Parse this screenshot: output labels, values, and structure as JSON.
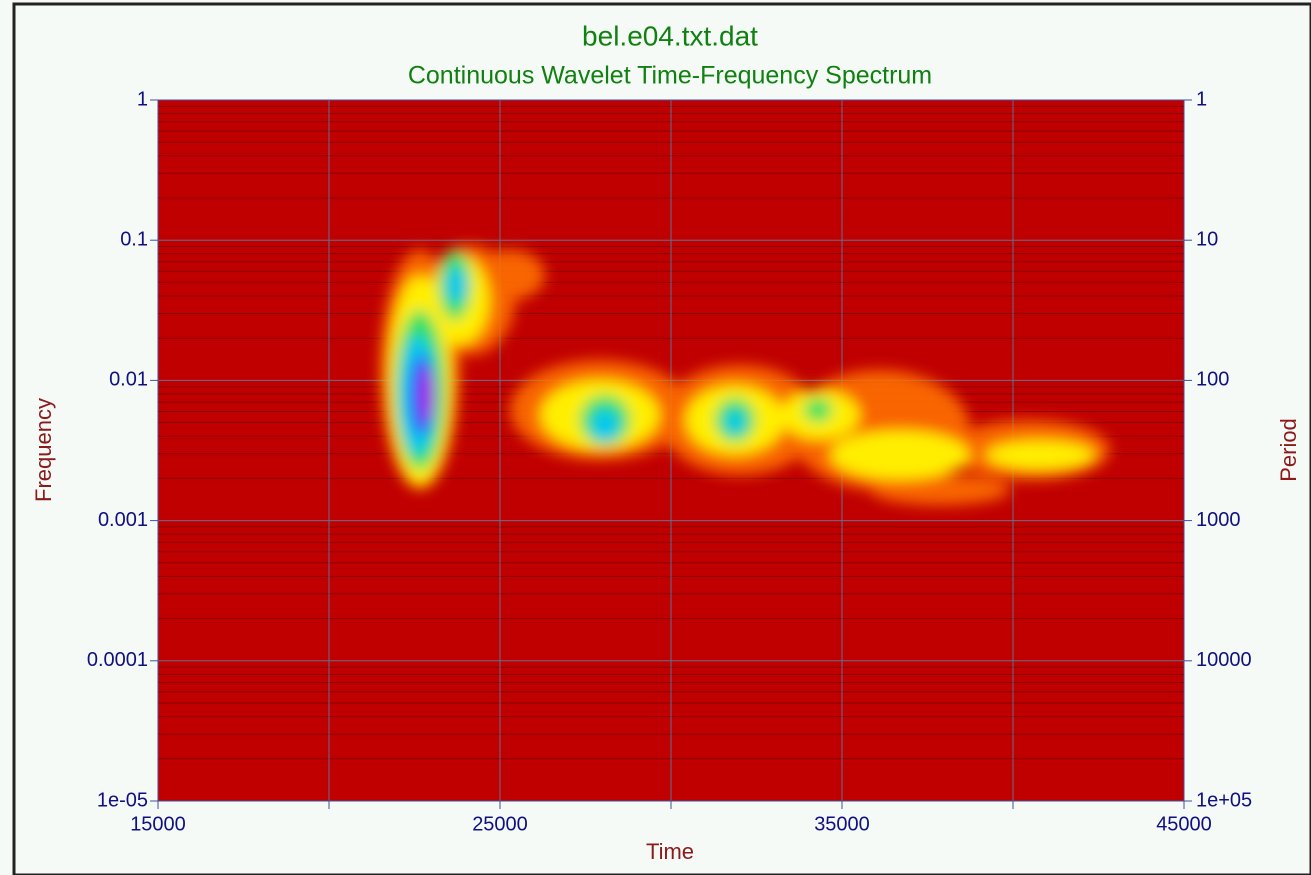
{
  "chart_data": {
    "type": "heatmap",
    "title": "bel.e04.txt.dat",
    "subtitle": "Continuous Wavelet Time-Frequency Spectrum",
    "xlabel": "Time",
    "ylabel": "Frequency",
    "y2label": "Period",
    "xlim": [
      15000,
      45000
    ],
    "xticks": [
      15000,
      25000,
      35000,
      45000
    ],
    "xminorticks": [
      20000,
      30000,
      40000
    ],
    "ylim": [
      1e-05,
      1
    ],
    "yscale": "log",
    "yticks": [
      {
        "value": 1e-05,
        "label": "1e-05"
      },
      0.0001,
      0.001,
      0.01,
      0.1,
      1
    ],
    "y2lim": [
      100000,
      1
    ],
    "y2scale": "log",
    "y2ticks": [
      1,
      10,
      100,
      1000,
      10000,
      {
        "value": 100000,
        "label": "1e+05"
      }
    ],
    "background_color": "#c00000",
    "grid": true
  }
}
